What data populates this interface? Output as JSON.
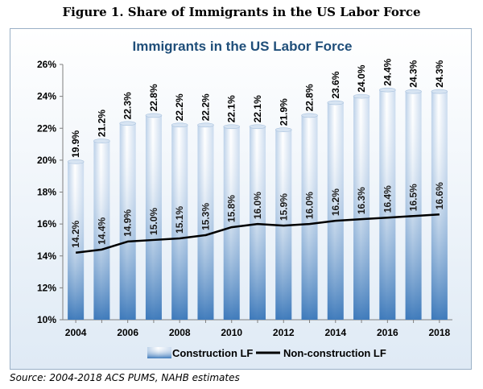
{
  "figure_title": "Figure 1. Share of Immigrants in the US Labor Force",
  "source": "Source: 2004-2018 ACS PUMS, NAHB estimates",
  "chart_data": {
    "type": "bar",
    "title": "Immigrants in the US Labor Force",
    "categories": [
      "2004",
      "2005",
      "2006",
      "2007",
      "2008",
      "2009",
      "2010",
      "2011",
      "2012",
      "2013",
      "2014",
      "2015",
      "2016",
      "2017",
      "2018"
    ],
    "xtick_labels": [
      "2004",
      "2006",
      "2008",
      "2010",
      "2012",
      "2014",
      "2016",
      "2018"
    ],
    "ylim": [
      10,
      26
    ],
    "yticks": [
      10,
      12,
      14,
      16,
      18,
      20,
      22,
      24,
      26
    ],
    "ytick_suffix": "%",
    "grid": false,
    "legend_position": "bottom",
    "series": [
      {
        "name": "Construction LF",
        "kind": "bar",
        "values": [
          19.9,
          21.2,
          22.3,
          22.8,
          22.2,
          22.2,
          22.1,
          22.1,
          21.9,
          22.8,
          23.6,
          24.0,
          24.4,
          24.3,
          24.3
        ],
        "labels": [
          "19.9%",
          "21.2%",
          "22.3%",
          "22.8%",
          "22.2%",
          "22.2%",
          "22.1%",
          "22.1%",
          "21.9%",
          "22.8%",
          "23.6%",
          "24.0%",
          "24.4%",
          "24.3%",
          "24.3%"
        ]
      },
      {
        "name": "Non-construction LF",
        "kind": "line",
        "values": [
          14.2,
          14.4,
          14.9,
          15.0,
          15.1,
          15.3,
          15.8,
          16.0,
          15.9,
          16.0,
          16.2,
          16.3,
          16.4,
          16.5,
          16.6
        ],
        "labels": [
          "14.2%",
          "14.4%",
          "14.9%",
          "15.0%",
          "15.1%",
          "15.3%",
          "15.8%",
          "16.0%",
          "15.9%",
          "16.0%",
          "16.2%",
          "16.3%",
          "16.4%",
          "16.5%",
          "16.6%"
        ]
      }
    ],
    "colors": {
      "bar_dark": "#2e6fb5",
      "bar_light": "#e6eef7",
      "line": "#000000",
      "title": "#1f4e79"
    }
  }
}
